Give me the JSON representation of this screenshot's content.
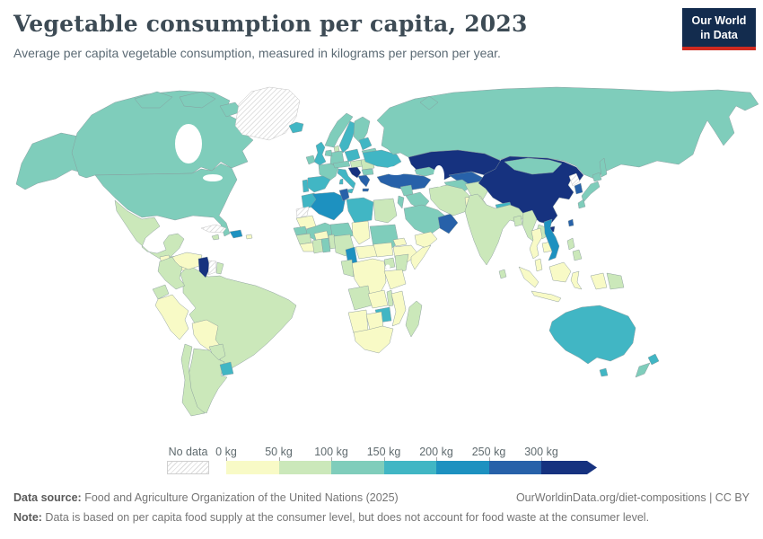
{
  "header": {
    "title": "Vegetable consumption per capita, 2023",
    "subtitle": "Average per capita vegetable consumption, measured in kilograms per person per year.",
    "logo": {
      "line1": "Our World",
      "line2": "in Data",
      "bg_color": "#132c4e",
      "accent_color": "#cf2a20"
    }
  },
  "legend": {
    "no_data_label": "No data",
    "tick_labels": [
      "0 kg",
      "50 kg",
      "100 kg",
      "150 kg",
      "200 kg",
      "250 kg",
      "300 kg"
    ]
  },
  "footer": {
    "source_label": "Data source:",
    "source_text": " Food and Agriculture Organization of the United Nations (2025)",
    "cite": "OurWorldinData.org/diet-compositions | CC BY",
    "note_label": "Note:",
    "note_text": " Data is based on per capita food supply at the consumer level, but does not account for food waste at the consumer level."
  },
  "chart_data": {
    "type": "choropleth",
    "title": "Vegetable consumption per capita, 2023",
    "unit": "kilograms per person per year",
    "year": 2023,
    "scale": {
      "min_label": "0 kg",
      "max_label": "300 kg",
      "open_ended": true,
      "no_data_pattern": "diagonal-hatch"
    },
    "bins": [
      {
        "label": "0-50 kg",
        "color": "#F8FAC6"
      },
      {
        "label": "50-100 kg",
        "color": "#CBE8BA"
      },
      {
        "label": "100-150 kg",
        "color": "#7FCDBB"
      },
      {
        "label": "150-200 kg",
        "color": "#41B6C4"
      },
      {
        "label": "200-250 kg",
        "color": "#1D91C0"
      },
      {
        "label": "250-300 kg",
        "color": "#2761A9"
      },
      {
        "label": "300+ kg",
        "color": "#16327F"
      }
    ],
    "regions": {
      "usa-alaska": "100-150 kg",
      "canada": "100-150 kg",
      "canada-arctic-islands": "100-150 kg",
      "greenland": "no data",
      "iceland": "150-200 kg",
      "usa": "100-150 kg",
      "mexico": "50-100 kg",
      "guatemala": "0-50 kg",
      "honduras": "50-100 kg",
      "nicaragua": "0-50 kg",
      "costa-rica": "50-100 kg",
      "panama": "50-100 kg",
      "cuba": "no data",
      "jamaica": "50-100 kg",
      "hispaniola": "200-250 kg",
      "puerto-rico": "0-50 kg",
      "colombia": "50-100 kg",
      "venezuela": "0-50 kg",
      "guyana": "300+ kg",
      "suriname": "no data",
      "french-guiana": "50-100 kg",
      "ecuador": "50-100 kg",
      "peru": "0-50 kg",
      "brazil": "50-100 kg",
      "bolivia": "0-50 kg",
      "paraguay": "50-100 kg",
      "uruguay": "150-200 kg",
      "argentina": "50-100 kg",
      "chile": "50-100 kg",
      "ireland": "100-150 kg",
      "uk": "150-200 kg",
      "norway": "100-150 kg",
      "sweden": "150-200 kg",
      "finland": "100-150 kg",
      "denmark": "50-100 kg",
      "baltics": "150-200 kg",
      "belarus": "100-150 kg",
      "poland": "150-200 kg",
      "germany": "100-150 kg",
      "netherlands-belgium": "100-150 kg",
      "france": "100-150 kg",
      "alpine-states": "100-150 kg",
      "hungary-slovakia": "50-100 kg",
      "romania": "50-100 kg",
      "ukraine": "150-200 kg",
      "portugal": "150-200 kg",
      "spain": "150-200 kg",
      "italy": "150-200 kg",
      "balkans": "300+ kg",
      "bulgaria": "100-150 kg",
      "greece": "250-300 kg",
      "turkey": "250-300 kg",
      "caucasus": "100-150 kg",
      "syria": "100-150 kg",
      "iraq": "100-150 kg",
      "jordan-israel": "100-150 kg",
      "saudi-arabia": "100-150 kg",
      "yemen": "0-50 kg",
      "oman": "250-300 kg",
      "iran": "50-100 kg",
      "afghanistan": "50-100 kg",
      "pakistan": "0-50 kg",
      "turkmenistan": "100-150 kg",
      "uzbekistan": "250-300 kg",
      "kyrgyzstan": "150-200 kg",
      "kazakhstan": "300+ kg",
      "russia": "100-150 kg",
      "mongolia": "100-150 kg",
      "china": "300+ kg",
      "north-korea": "no data",
      "south-korea": "250-300 kg",
      "japan": "100-150 kg",
      "taiwan": "250-300 kg",
      "nepal": "150-200 kg",
      "india": "50-100 kg",
      "bangladesh": "50-100 kg",
      "sri-lanka": "50-100 kg",
      "myanmar": "50-100 kg",
      "thailand": "0-50 kg",
      "laos": "50-100 kg",
      "cambodia": "0-50 kg",
      "vietnam": "200-250 kg",
      "malaysia": "0-50 kg",
      "indonesia": "0-50 kg",
      "papua-new-guinea": "50-100 kg",
      "philippines": "50-100 kg",
      "morocco": "150-200 kg",
      "western-sahara": "no data",
      "algeria": "200-250 kg",
      "tunisia": "250-300 kg",
      "libya": "150-200 kg",
      "egypt": "50-100 kg",
      "mauritania": "0-50 kg",
      "mali": "100-150 kg",
      "niger": "100-150 kg",
      "chad": "0-50 kg",
      "sudan": "100-150 kg",
      "eritrea": "0-50 kg",
      "ethiopia": "0-50 kg",
      "somalia": "0-50 kg",
      "senegal": "100-150 kg",
      "guinea": "50-100 kg",
      "sierra-leone-liberia": "0-50 kg",
      "ivory-coast": "50-100 kg",
      "ghana": "100-150 kg",
      "burkina-faso": "0-50 kg",
      "benin-togo": "50-100 kg",
      "nigeria": "50-100 kg",
      "cameroon": "200-250 kg",
      "central-african-republic": "0-50 kg",
      "south-sudan": "0-50 kg",
      "drc": "0-50 kg",
      "congo-gabon": "50-100 kg",
      "uganda": "50-100 kg",
      "kenya": "50-100 kg",
      "tanzania": "0-50 kg",
      "angola": "50-100 kg",
      "zambia": "0-50 kg",
      "malawi": "50-100 kg",
      "mozambique": "0-50 kg",
      "zimbabwe": "150-200 kg",
      "botswana": "0-50 kg",
      "namibia": "0-50 kg",
      "south-africa": "0-50 kg",
      "madagascar": "50-100 kg",
      "australia": "150-200 kg",
      "new-zealand-north": "150-200 kg",
      "new-zealand-south": "100-150 kg"
    }
  }
}
